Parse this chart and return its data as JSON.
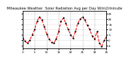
{
  "title": "Milwaukee Weather  Solar Radiation Avg per Day W/m2/minute",
  "title_fontsize": 3.8,
  "x_values": [
    0,
    1,
    2,
    3,
    4,
    5,
    6,
    7,
    8,
    9,
    10,
    11,
    12,
    13,
    14,
    15,
    16,
    17,
    18,
    19,
    20,
    21,
    22,
    23,
    24,
    25,
    26,
    27,
    28,
    29,
    30,
    31,
    32,
    33,
    34,
    35
  ],
  "y_values": [
    2,
    -1,
    -3,
    0,
    5,
    10,
    18,
    22,
    19,
    13,
    6,
    1,
    -2,
    -3,
    1,
    8,
    18,
    21,
    16,
    10,
    5,
    2,
    8,
    16,
    20,
    22,
    19,
    14,
    10,
    4,
    1,
    8,
    -3,
    -6,
    0,
    3
  ],
  "line_color": "red",
  "line_style": "--",
  "marker": ".",
  "marker_color": "black",
  "marker_size": 1.5,
  "background_color": "white",
  "grid_color": "#aaaaaa",
  "ylabel_right_values": [
    25,
    20,
    15,
    10,
    5,
    0,
    -5
  ],
  "ylim": [
    -8,
    28
  ],
  "xlim": [
    0,
    35
  ],
  "vline_positions": [
    5,
    10,
    15,
    20,
    25,
    30
  ],
  "tick_fontsize": 3.0,
  "linewidth": 0.8,
  "xlabel_ticks": [
    0,
    5,
    10,
    15,
    20,
    25,
    30,
    35
  ],
  "xlabel_labels": [
    "0",
    "5",
    "10",
    "15",
    "20",
    "25",
    "30",
    "35"
  ]
}
